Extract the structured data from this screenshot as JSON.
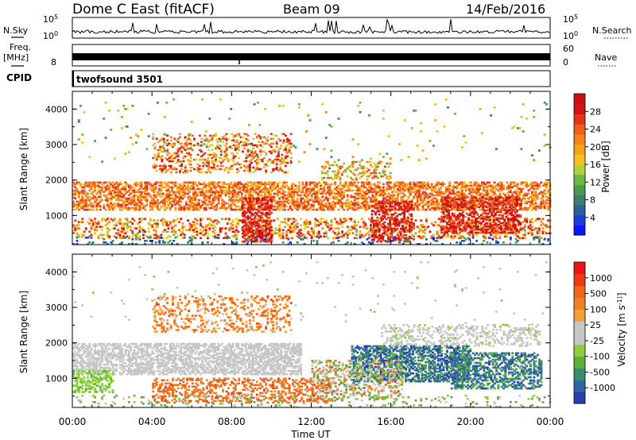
{
  "header": {
    "station": "Dome C East (fitACF)",
    "beam": "Beam 09",
    "date": "14/Feb/2016"
  },
  "panels": {
    "nsky_label": "N.Sky",
    "nsearch_label": "N.Search",
    "freq_label_1": "Freq.",
    "freq_label_2": "[MHz]",
    "nave_label": "Nave",
    "cpid_label": "CPID",
    "cpid_value": "twofsound 3501",
    "noise_ticks_left": [
      "10^5",
      "10^0"
    ],
    "noise_ticks_right": [
      "10^5",
      "10^0"
    ],
    "freq_tick_left": "8",
    "nave_ticks_right": [
      "60",
      "0"
    ]
  },
  "chart_data": [
    {
      "type": "heatmap",
      "panel": "power",
      "ylabel": "Slant Range [km]",
      "xlabel": "",
      "ylim": [
        180,
        4500
      ],
      "yticks": [
        1000,
        2000,
        3000,
        4000
      ],
      "xlim_hours": [
        0,
        24
      ],
      "colorbar": {
        "label": "Power [dB]",
        "ticks": [
          "28",
          "24",
          "20",
          "16",
          "12",
          "8",
          "4"
        ],
        "colors": [
          "#0a14ff",
          "#1e3cd6",
          "#2f5f9c",
          "#3d7d6b",
          "#4a9b52",
          "#6bb83d",
          "#b2d13a",
          "#f6c21b",
          "#f7a21a",
          "#f4831f",
          "#ef5d1e",
          "#e3341b",
          "#d31516",
          "#c8100f"
        ]
      },
      "bands": [
        {
          "t0": 0.0,
          "t1": 24.0,
          "r0": 1150,
          "r1": 1950,
          "p": 0.55,
          "c": [
            0.55,
            0.85
          ]
        },
        {
          "t0": 0.0,
          "t1": 24.0,
          "r0": 350,
          "r1": 900,
          "p": 0.3,
          "c": [
            0.4,
            0.95
          ]
        },
        {
          "t0": 4.0,
          "t1": 11.0,
          "r0": 2200,
          "r1": 3300,
          "p": 0.3,
          "c": [
            0.45,
            0.95
          ]
        },
        {
          "t0": 8.5,
          "t1": 10.0,
          "r0": 250,
          "r1": 1500,
          "p": 0.55,
          "c": [
            0.75,
            1.0
          ]
        },
        {
          "t0": 15.0,
          "t1": 17.0,
          "r0": 250,
          "r1": 1400,
          "p": 0.5,
          "c": [
            0.75,
            1.0
          ]
        },
        {
          "t0": 18.5,
          "t1": 22.5,
          "r0": 500,
          "r1": 1500,
          "p": 0.55,
          "c": [
            0.7,
            1.0
          ]
        },
        {
          "t0": 0.0,
          "t1": 24.0,
          "r0": 180,
          "r1": 400,
          "p": 0.12,
          "c": [
            0.05,
            0.35
          ]
        },
        {
          "t0": 12.5,
          "t1": 16.0,
          "r0": 2000,
          "r1": 2500,
          "p": 0.25,
          "c": [
            0.35,
            0.8
          ]
        },
        {
          "t0": 0.0,
          "t1": 24.0,
          "r0": 2500,
          "r1": 4300,
          "p": 0.015,
          "c": [
            0.2,
            0.7
          ]
        }
      ]
    },
    {
      "type": "heatmap",
      "panel": "velocity",
      "ylabel": "Slant Range [km]",
      "xlabel": "Time UT",
      "ylim": [
        180,
        4500
      ],
      "yticks": [
        1000,
        2000,
        3000,
        4000
      ],
      "xlim_hours": [
        0,
        24
      ],
      "xtick_labels": [
        "00:00",
        "04:00",
        "08:00",
        "12:00",
        "16:00",
        "20:00",
        "00:00"
      ],
      "colorbar": {
        "label": "Velocity [m s^-1]",
        "ticks": [
          "1000",
          "500",
          "100",
          "25",
          "-25",
          "-100",
          "-500",
          "-1000"
        ],
        "colors": [
          "#2a3fae",
          "#2e67a8",
          "#3a8d6a",
          "#5eaf3a",
          "#8ccc3c",
          "#c6c6c6",
          "#c6c6c6",
          "#f3a03c",
          "#f1811e",
          "#ef6519",
          "#ec3a18",
          "#e61616"
        ]
      },
      "bands": [
        {
          "t0": 0.0,
          "t1": 11.5,
          "r0": 1100,
          "r1": 2000,
          "p": 0.6,
          "c": [
            0.42,
            0.58
          ]
        },
        {
          "t0": 0.0,
          "t1": 2.0,
          "r0": 600,
          "r1": 1200,
          "p": 0.45,
          "c": [
            0.3,
            0.42
          ]
        },
        {
          "t0": 4.0,
          "t1": 13.0,
          "r0": 300,
          "r1": 1000,
          "p": 0.4,
          "c": [
            0.68,
            0.85
          ]
        },
        {
          "t0": 4.0,
          "t1": 11.0,
          "r0": 2300,
          "r1": 3300,
          "p": 0.25,
          "c": [
            0.55,
            0.85
          ]
        },
        {
          "t0": 14.0,
          "t1": 20.0,
          "r0": 900,
          "r1": 1900,
          "p": 0.55,
          "c": [
            0.0,
            0.3
          ]
        },
        {
          "t0": 19.0,
          "t1": 23.5,
          "r0": 700,
          "r1": 1700,
          "p": 0.5,
          "c": [
            0.05,
            0.3
          ]
        },
        {
          "t0": 12.0,
          "t1": 16.5,
          "r0": 400,
          "r1": 1500,
          "p": 0.35,
          "c": [
            0.2,
            0.8
          ]
        },
        {
          "t0": 15.5,
          "t1": 23.5,
          "r0": 1900,
          "r1": 2500,
          "p": 0.3,
          "c": [
            0.4,
            0.55
          ]
        },
        {
          "t0": 0.0,
          "t1": 24.0,
          "r0": 180,
          "r1": 500,
          "p": 0.1,
          "c": [
            0.25,
            0.45
          ]
        },
        {
          "t0": 0.0,
          "t1": 24.0,
          "r0": 2500,
          "r1": 4300,
          "p": 0.012,
          "c": [
            0.4,
            0.6
          ]
        }
      ]
    }
  ]
}
